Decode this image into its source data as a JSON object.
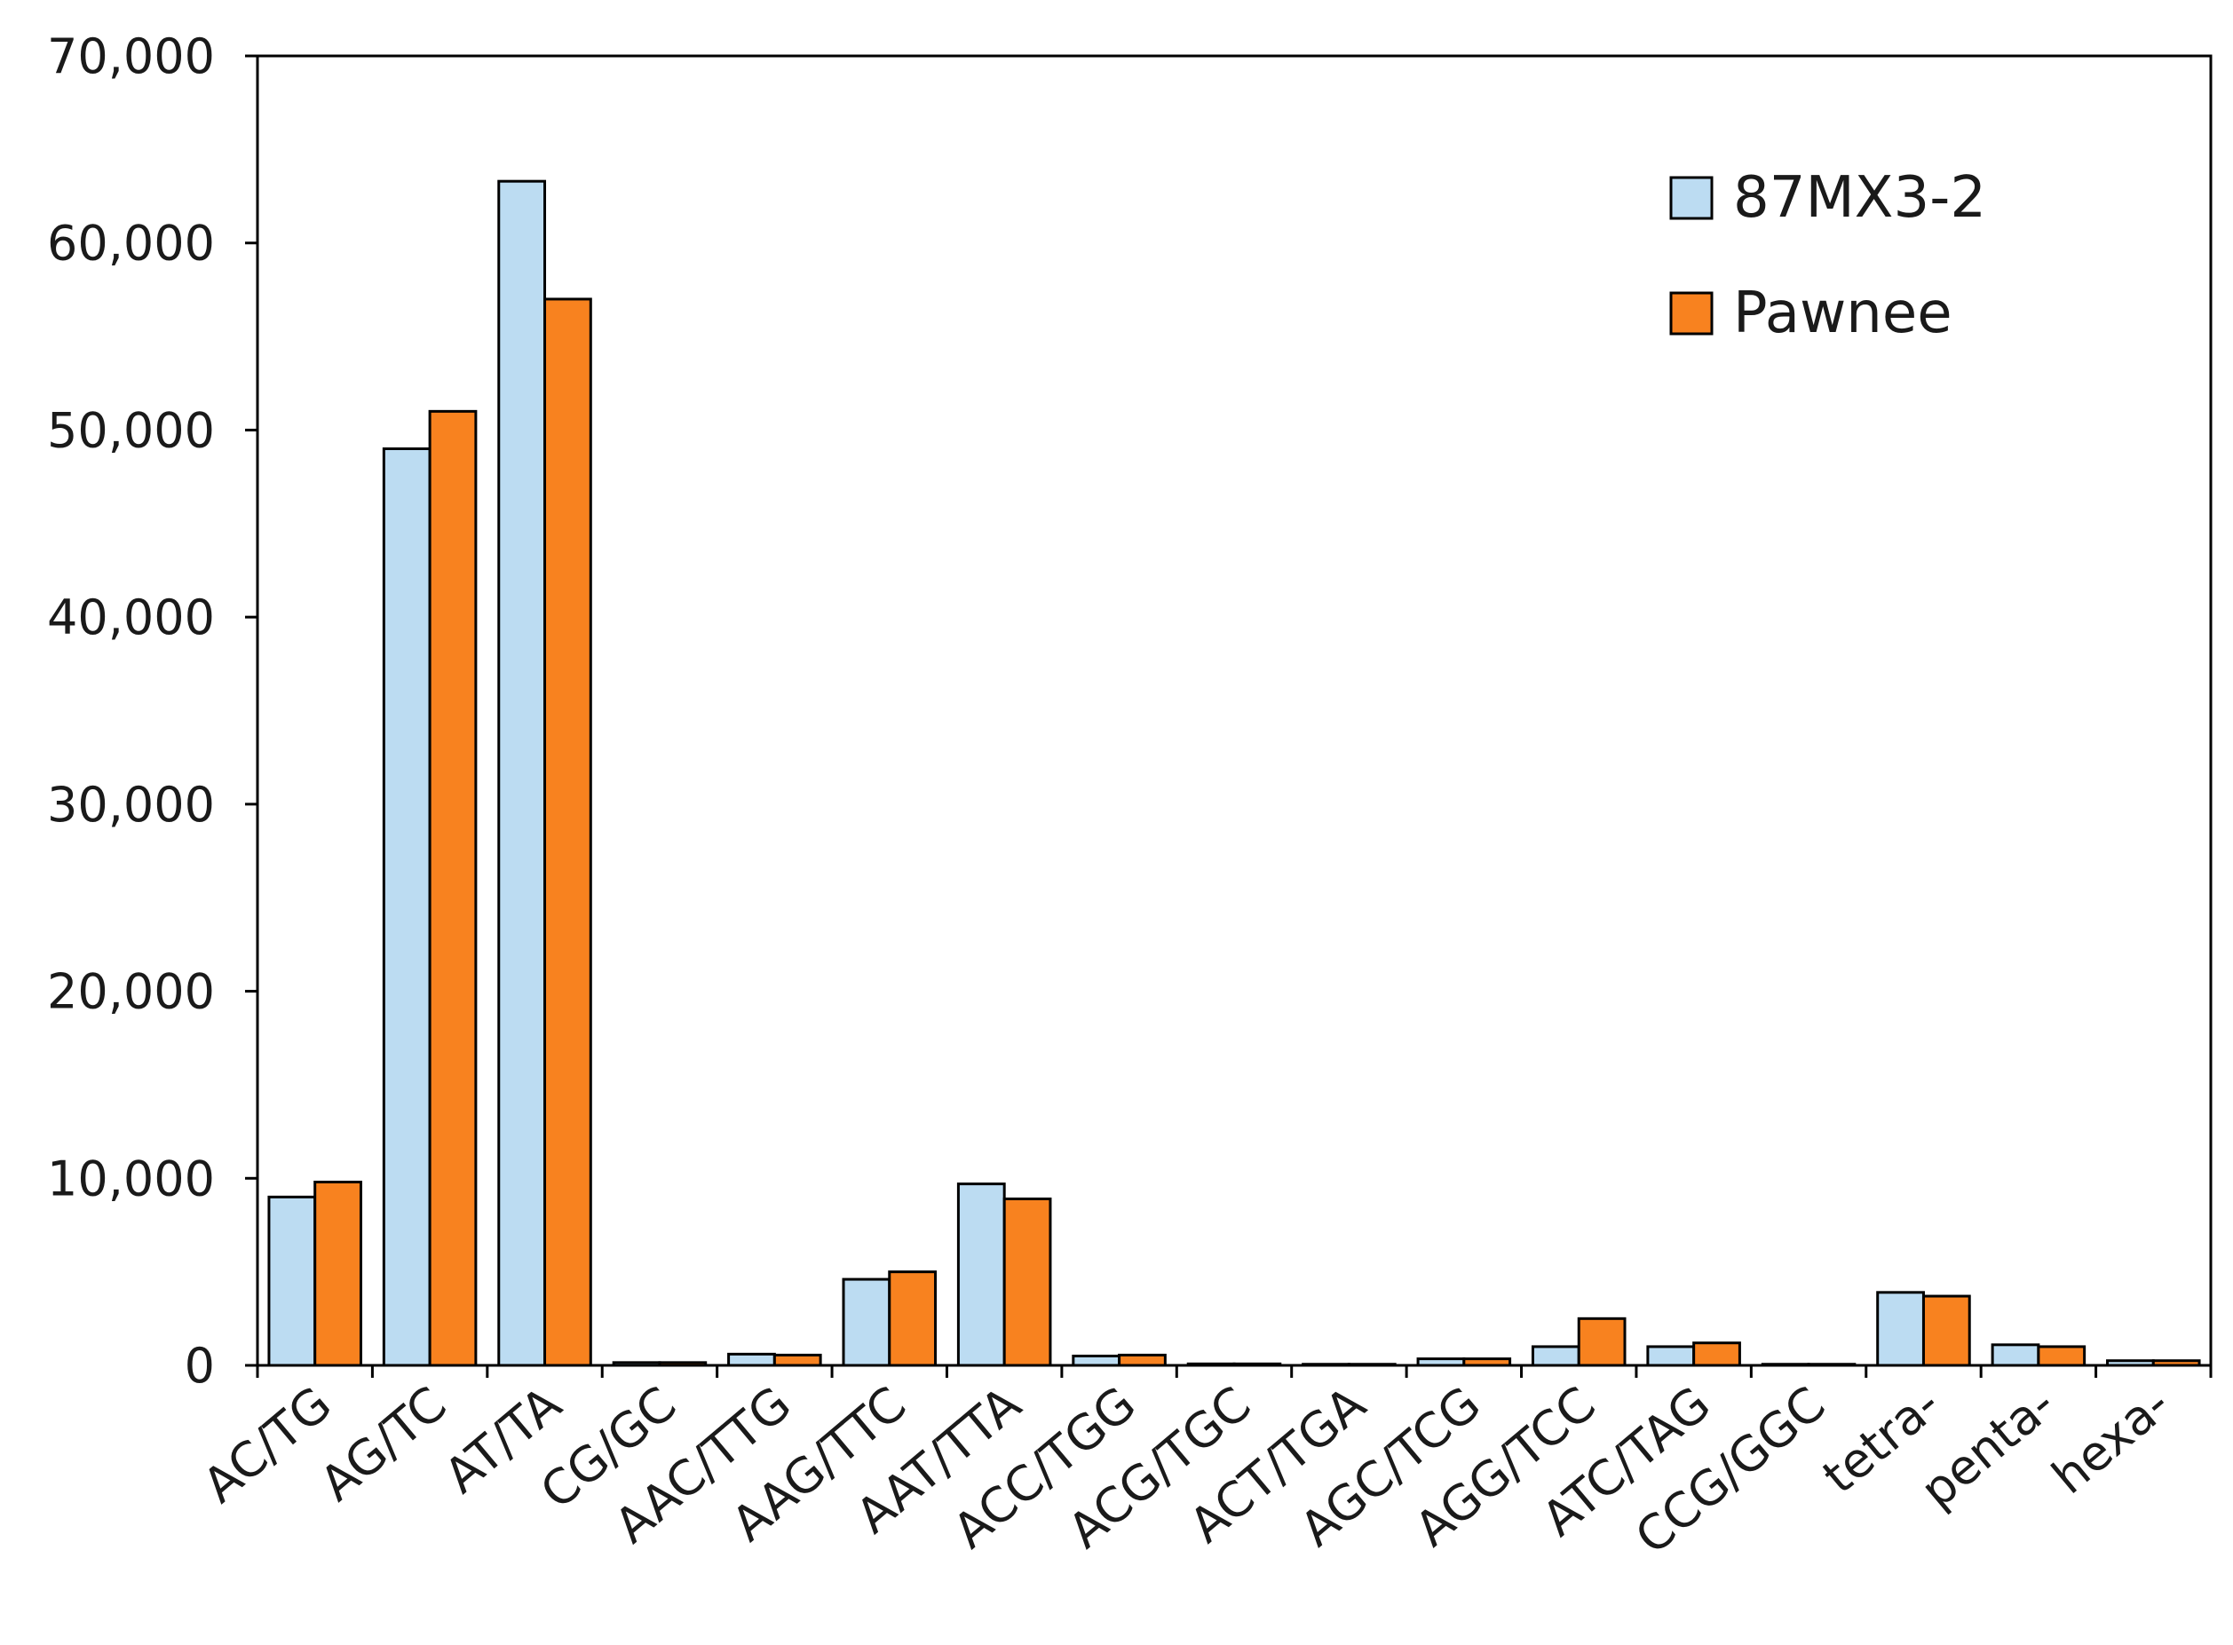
{
  "chart_data": {
    "type": "bar",
    "title": "",
    "xlabel": "",
    "ylabel": "",
    "ylim": [
      0,
      70000
    ],
    "yticks": [
      0,
      10000,
      20000,
      30000,
      40000,
      50000,
      60000,
      70000
    ],
    "ytick_labels": [
      "0",
      "10,000",
      "20,000",
      "30,000",
      "40,000",
      "50,000",
      "60,000",
      "70,000"
    ],
    "grid": false,
    "legend_position": "top-right",
    "categories": [
      "AC/TG",
      "AG/TC",
      "AT/TA",
      "CG/GC",
      "AAC/TTG",
      "AAG/TTC",
      "AAT/TTA",
      "ACC/TGG",
      "ACG/TGC",
      "ACT/TGA",
      "AGC/TCG",
      "AGG/TCC",
      "ATC/TAG",
      "CCG/GGC",
      "tetra-",
      "penta-",
      "hexa-"
    ],
    "series": [
      {
        "name": "87MX3-2",
        "color": "#bcdcf2",
        "values": [
          9000,
          49000,
          63300,
          150,
          600,
          4600,
          9700,
          500,
          80,
          60,
          350,
          1000,
          1000,
          60,
          3900,
          1100,
          250
        ]
      },
      {
        "name": "Pawnee",
        "color": "#f8821f",
        "values": [
          9800,
          51000,
          57000,
          150,
          550,
          5000,
          8900,
          550,
          80,
          60,
          350,
          2500,
          1200,
          60,
          3700,
          1000,
          250
        ]
      }
    ]
  }
}
